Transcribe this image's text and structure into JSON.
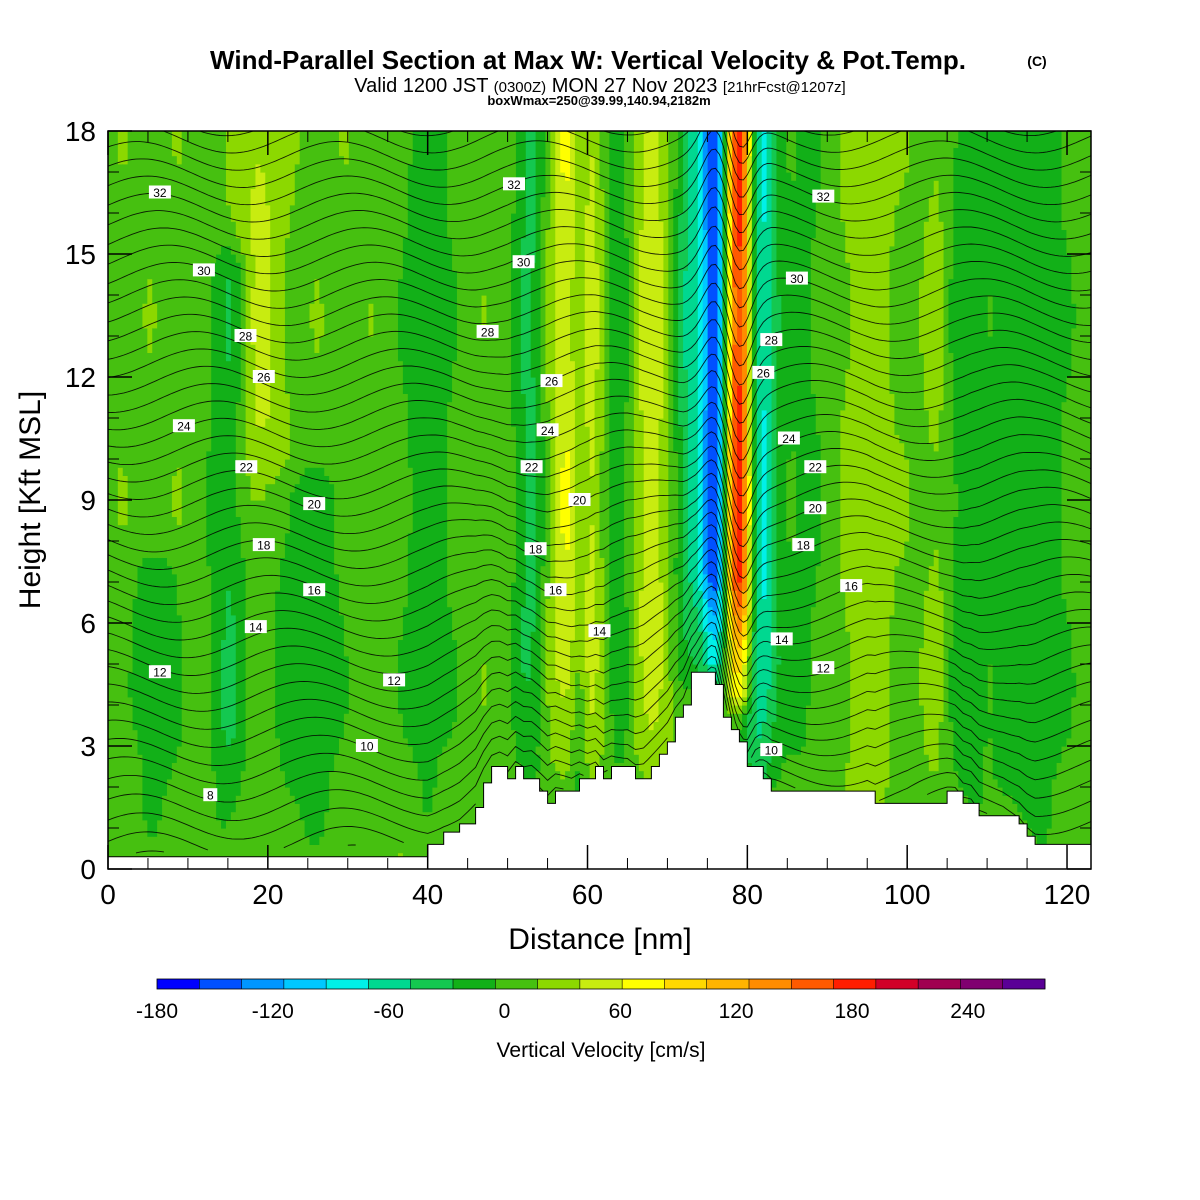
{
  "chart_data": {
    "type": "heatmap",
    "title": "Wind-Parallel Section at Max W: Vertical Velocity & Pot.Temp.",
    "title_mark": "(C)",
    "subtitle_parts": [
      "Valid 1200 JST",
      "(0300Z)",
      "MON 27 Nov 2023",
      "[21hrFcst@1207z]"
    ],
    "subtitle2": "boxWmax=250@39.99,140.94,2182m",
    "xlabel": "Distance [nm]",
    "ylabel": "Height [Kft MSL]",
    "xlim": [
      0,
      123
    ],
    "ylim": [
      0,
      18
    ],
    "x_ticks": [
      "0",
      "20",
      "40",
      "60",
      "80",
      "100",
      "120"
    ],
    "y_ticks": [
      "0",
      "3",
      "6",
      "9",
      "12",
      "15",
      "18"
    ],
    "colorbar": {
      "label": "Vertical Velocity [cm/s]",
      "min": -180,
      "max": 260,
      "step": 20,
      "tick_values": [
        -180,
        -120,
        -60,
        0,
        60,
        120,
        180,
        240
      ],
      "tick_labels": [
        "-180",
        "-120",
        "-60",
        "0",
        "60",
        "120",
        "180",
        "240"
      ],
      "colors": [
        "#0000ff",
        "#0050ff",
        "#0096ff",
        "#00c8ff",
        "#00f0e8",
        "#00d890",
        "#14c850",
        "#12b018",
        "#46c010",
        "#8cd800",
        "#c8ec10",
        "#ffff00",
        "#ffd800",
        "#ffb400",
        "#ff8c00",
        "#ff5a00",
        "#ff1e00",
        "#d20028",
        "#a00050",
        "#800070",
        "#5a0096"
      ]
    },
    "terrain_profile": {
      "x": [
        0,
        40,
        42,
        44,
        46,
        47,
        48,
        49,
        50,
        51,
        52,
        53,
        54,
        55,
        56,
        58,
        59,
        60,
        61,
        62,
        63,
        64,
        65,
        66,
        67,
        68,
        69,
        70,
        71,
        72,
        73,
        74,
        76,
        77,
        78,
        79,
        80,
        81,
        82,
        83,
        84,
        85,
        95,
        96,
        100,
        105,
        106,
        107,
        108,
        109,
        110,
        112,
        114,
        115,
        116,
        118,
        120,
        123
      ],
      "height_kft": [
        0.3,
        0.6,
        0.9,
        1.1,
        1.5,
        2.1,
        2.5,
        2.5,
        2.2,
        2.5,
        2.2,
        2.2,
        1.9,
        1.6,
        1.9,
        1.9,
        2.2,
        2.2,
        2.5,
        2.2,
        2.5,
        2.5,
        2.5,
        2.2,
        2.2,
        2.5,
        2.8,
        3.1,
        3.7,
        4.0,
        4.8,
        4.8,
        4.5,
        3.7,
        3.4,
        3.1,
        2.5,
        2.5,
        2.2,
        1.9,
        1.9,
        1.9,
        1.9,
        1.6,
        1.6,
        1.9,
        1.9,
        1.6,
        1.6,
        1.3,
        1.3,
        1.3,
        1.1,
        0.8,
        0.6,
        0.6,
        0.6,
        0.6
      ]
    },
    "velocity_features": [
      {
        "x": 76,
        "z_min": 4.8,
        "z_max": 18,
        "width_nm": 1.8,
        "w_cm_s": -150
      },
      {
        "x": 79,
        "z_min": 4.5,
        "z_max": 18,
        "width_nm": 2.0,
        "w_cm_s": 180
      },
      {
        "x": 81.5,
        "z_min": 2.5,
        "z_max": 18,
        "width_nm": 2.5,
        "w_cm_s": -90
      },
      {
        "x": 73,
        "z_min": 5.0,
        "z_max": 18,
        "width_nm": 2.5,
        "w_cm_s": -60
      },
      {
        "x": 57.5,
        "z_min": 3.0,
        "z_max": 18,
        "width_nm": 3.5,
        "w_cm_s": 45
      },
      {
        "x": 68,
        "z_min": 3.0,
        "z_max": 18,
        "width_nm": 3.0,
        "w_cm_s": 35
      },
      {
        "x": 60,
        "z_min": 2.5,
        "z_max": 18,
        "width_nm": 2.0,
        "w_cm_s": 20
      },
      {
        "x": 19,
        "z_min": 8.5,
        "z_max": 18,
        "width_nm": 3.0,
        "w_cm_s": 30
      },
      {
        "x": 53,
        "z_min": 2.5,
        "z_max": 18,
        "width_nm": 2.5,
        "w_cm_s": -45
      },
      {
        "x": 59,
        "z_min": 1.0,
        "z_max": 18,
        "width_nm": 1.2,
        "w_cm_s": -40
      },
      {
        "x": 64,
        "z_min": 2.5,
        "z_max": 18,
        "width_nm": 2.0,
        "w_cm_s": -30
      },
      {
        "x": 15,
        "z_min": 1.0,
        "z_max": 14.5,
        "width_nm": 2.5,
        "w_cm_s": -35
      },
      {
        "x": 25,
        "z_min": 1.0,
        "z_max": 9.0,
        "width_nm": 5.0,
        "w_cm_s": -30
      },
      {
        "x": 40,
        "z_min": 1.5,
        "z_max": 18,
        "width_nm": 4.0,
        "w_cm_s": -25
      },
      {
        "x": 6,
        "z_min": 1.0,
        "z_max": 7.0,
        "width_nm": 4.0,
        "w_cm_s": -25
      },
      {
        "x": 115,
        "z_min": 1.0,
        "z_max": 18,
        "width_nm": 6.0,
        "w_cm_s": -30
      },
      {
        "x": 107,
        "z_min": 1.5,
        "z_max": 18,
        "width_nm": 3.0,
        "w_cm_s": -25
      },
      {
        "x": 95,
        "z_min": 1.5,
        "z_max": 18,
        "width_nm": 3.0,
        "w_cm_s": 20
      },
      {
        "x": 104,
        "z_min": 2.0,
        "z_max": 18,
        "width_nm": 2.0,
        "w_cm_s": 15
      },
      {
        "x": 87,
        "z_min": 2.0,
        "z_max": 18,
        "width_nm": 3.0,
        "w_cm_s": -20
      }
    ],
    "isentrope_labels": [
      {
        "text": "8",
        "x": 12.8,
        "z": 1.8
      },
      {
        "text": "10",
        "x": 32.4,
        "z": 3.0
      },
      {
        "text": "10",
        "x": 83.0,
        "z": 2.9
      },
      {
        "text": "12",
        "x": 6.5,
        "z": 4.8
      },
      {
        "text": "12",
        "x": 35.8,
        "z": 4.6
      },
      {
        "text": "12",
        "x": 89.5,
        "z": 4.9
      },
      {
        "text": "14",
        "x": 18.5,
        "z": 5.9
      },
      {
        "text": "14",
        "x": 61.5,
        "z": 5.8
      },
      {
        "text": "14",
        "x": 84.3,
        "z": 5.6
      },
      {
        "text": "16",
        "x": 25.8,
        "z": 6.8
      },
      {
        "text": "16",
        "x": 56.0,
        "z": 6.8
      },
      {
        "text": "16",
        "x": 93.0,
        "z": 6.9
      },
      {
        "text": "18",
        "x": 19.5,
        "z": 7.9
      },
      {
        "text": "18",
        "x": 53.5,
        "z": 7.8
      },
      {
        "text": "18",
        "x": 87.0,
        "z": 7.9
      },
      {
        "text": "20",
        "x": 25.8,
        "z": 8.9
      },
      {
        "text": "20",
        "x": 59.0,
        "z": 9.0
      },
      {
        "text": "20",
        "x": 88.5,
        "z": 8.8
      },
      {
        "text": "22",
        "x": 17.3,
        "z": 9.8
      },
      {
        "text": "22",
        "x": 53.0,
        "z": 9.8
      },
      {
        "text": "22",
        "x": 88.5,
        "z": 9.8
      },
      {
        "text": "24",
        "x": 9.5,
        "z": 10.8
      },
      {
        "text": "24",
        "x": 55.0,
        "z": 10.7
      },
      {
        "text": "24",
        "x": 85.2,
        "z": 10.5
      },
      {
        "text": "26",
        "x": 19.5,
        "z": 12.0
      },
      {
        "text": "26",
        "x": 55.5,
        "z": 11.9
      },
      {
        "text": "26",
        "x": 82.0,
        "z": 12.1
      },
      {
        "text": "28",
        "x": 17.2,
        "z": 13.0
      },
      {
        "text": "28",
        "x": 47.5,
        "z": 13.1
      },
      {
        "text": "28",
        "x": 83.0,
        "z": 12.9
      },
      {
        "text": "30",
        "x": 12.0,
        "z": 14.6
      },
      {
        "text": "30",
        "x": 52.0,
        "z": 14.8
      },
      {
        "text": "30",
        "x": 86.2,
        "z": 14.4
      },
      {
        "text": "32",
        "x": 6.5,
        "z": 16.5
      },
      {
        "text": "32",
        "x": 50.8,
        "z": 16.7
      },
      {
        "text": "32",
        "x": 89.5,
        "z": 16.4
      }
    ]
  }
}
